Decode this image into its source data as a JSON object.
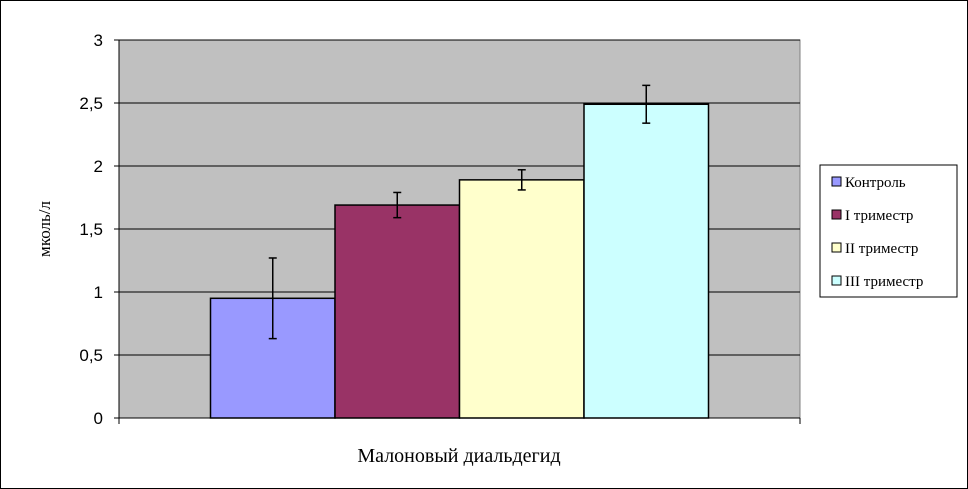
{
  "chart_data": {
    "type": "bar",
    "title": "",
    "xlabel": "Малоновый диальдегид",
    "ylabel": "мколь/л",
    "ylim": [
      0,
      3
    ],
    "yticks": [
      0,
      0.5,
      1,
      1.5,
      2,
      2.5,
      3
    ],
    "ytick_labels": [
      "0",
      "0,5",
      "1",
      "1,5",
      "2",
      "2,5",
      "3"
    ],
    "grid": true,
    "legend_position": "right",
    "categories": [
      "Малоновый диальдегид"
    ],
    "series": [
      {
        "name": "Контроль",
        "values": [
          0.95
        ],
        "error": [
          0.32
        ],
        "color": "#9999ff"
      },
      {
        "name": "I триместр",
        "values": [
          1.69
        ],
        "error": [
          0.1
        ],
        "color": "#993366"
      },
      {
        "name": "II триместр",
        "values": [
          1.89
        ],
        "error": [
          0.08
        ],
        "color": "#ffffcc"
      },
      {
        "name": "III триместр",
        "values": [
          2.49
        ],
        "error": [
          0.15
        ],
        "color": "#ccffff"
      }
    ],
    "plot_background": "#c0c0c0"
  }
}
